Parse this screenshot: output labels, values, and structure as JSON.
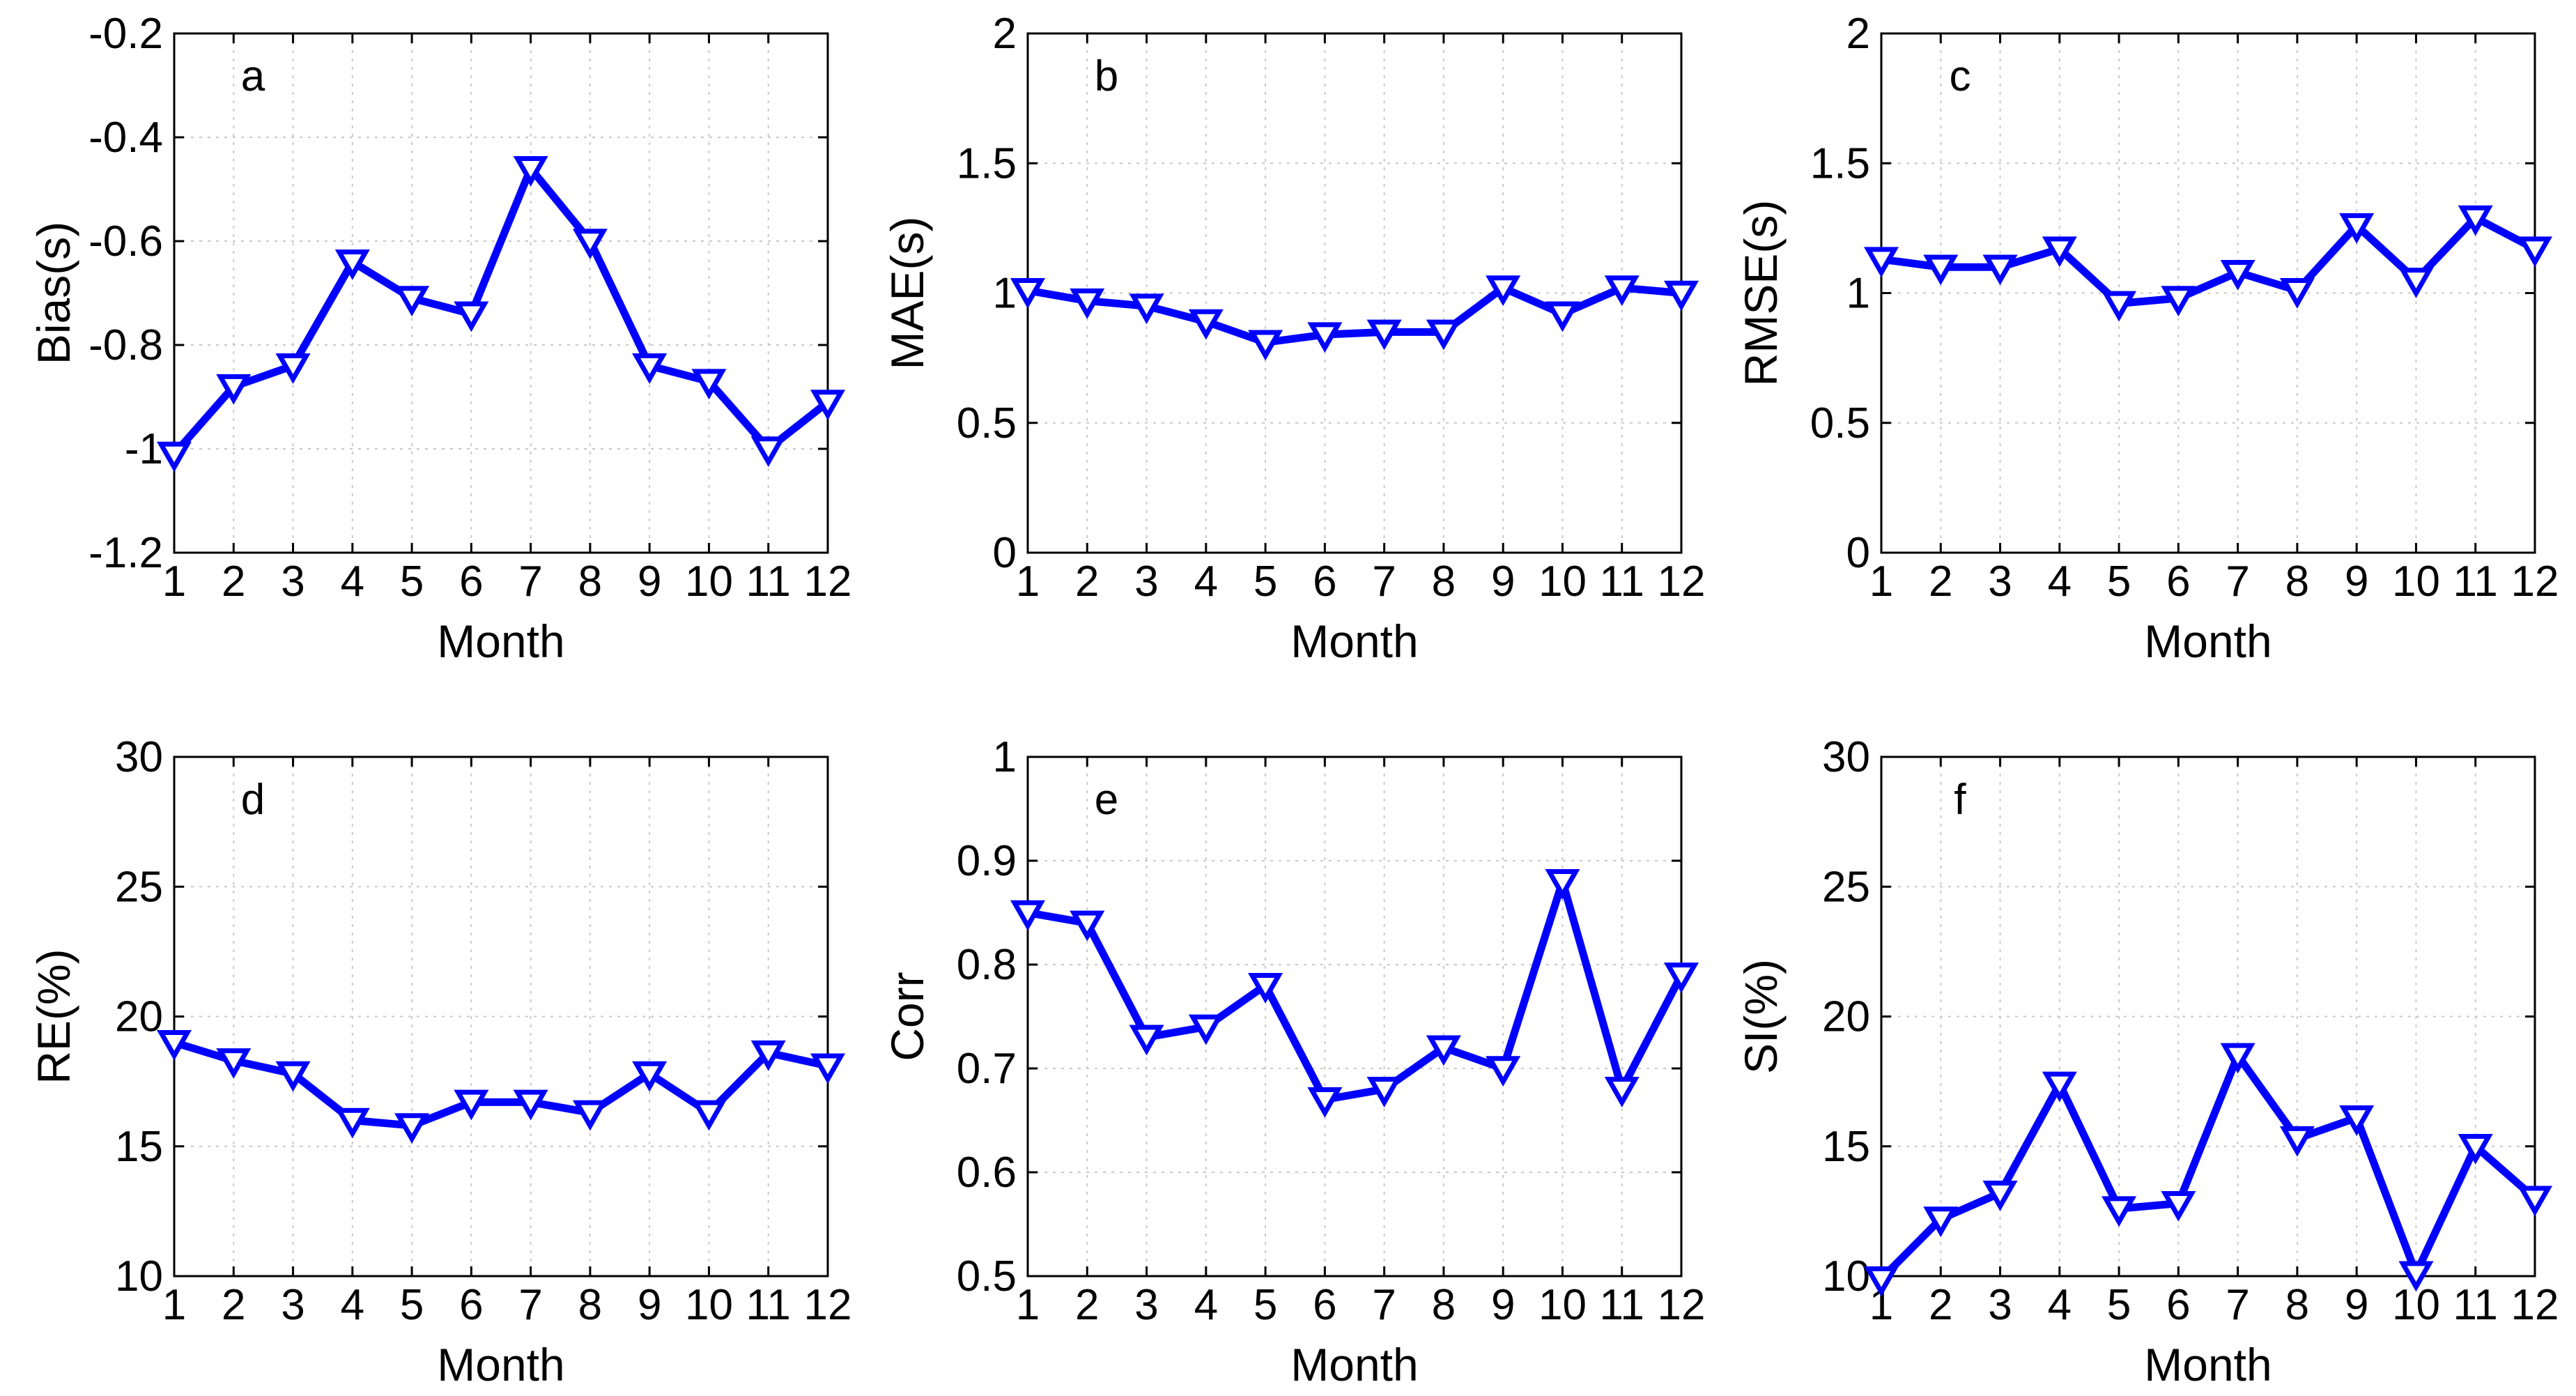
{
  "colors": {
    "series": "#0000ff",
    "axis": "#000000",
    "grid": "#c8c8c8"
  },
  "marker_icon": "triangle-down-icon",
  "chart_data": [
    {
      "type": "line",
      "panel": "a",
      "title": "",
      "xlabel": "Month",
      "ylabel": "Bias(s)",
      "x": [
        1,
        2,
        3,
        4,
        5,
        6,
        7,
        8,
        9,
        10,
        11,
        12
      ],
      "xticks": [
        "1",
        "2",
        "3",
        "4",
        "5",
        "6",
        "7",
        "8",
        "9",
        "10",
        "11",
        "12"
      ],
      "xlim": [
        1,
        12
      ],
      "ylim": [
        -1.2,
        -0.2
      ],
      "yticks": [
        -1.2,
        -1,
        -0.8,
        -0.6,
        -0.4,
        -0.2
      ],
      "ytick_labels": [
        "-1.2",
        "-1",
        "-0.8",
        "-0.6",
        "-0.4",
        "-0.2"
      ],
      "grid": true,
      "series": [
        {
          "name": "Bias",
          "values": [
            -1.01,
            -0.88,
            -0.84,
            -0.64,
            -0.71,
            -0.74,
            -0.46,
            -0.6,
            -0.84,
            -0.87,
            -1.0,
            -0.91
          ]
        }
      ]
    },
    {
      "type": "line",
      "panel": "b",
      "title": "",
      "xlabel": "Month",
      "ylabel": "MAE(s)",
      "x": [
        1,
        2,
        3,
        4,
        5,
        6,
        7,
        8,
        9,
        10,
        11,
        12
      ],
      "xticks": [
        "1",
        "2",
        "3",
        "4",
        "5",
        "6",
        "7",
        "8",
        "9",
        "10",
        "11",
        "12"
      ],
      "xlim": [
        1,
        12
      ],
      "ylim": [
        0,
        2
      ],
      "yticks": [
        0,
        0.5,
        1,
        1.5,
        2
      ],
      "ytick_labels": [
        "0",
        "0.5",
        "1",
        "1.5",
        "2"
      ],
      "grid": true,
      "series": [
        {
          "name": "MAE",
          "values": [
            1.01,
            0.97,
            0.95,
            0.89,
            0.81,
            0.84,
            0.85,
            0.85,
            1.02,
            0.92,
            1.02,
            1.0
          ]
        }
      ]
    },
    {
      "type": "line",
      "panel": "c",
      "title": "",
      "xlabel": "Month",
      "ylabel": "RMSE(s)",
      "x": [
        1,
        2,
        3,
        4,
        5,
        6,
        7,
        8,
        9,
        10,
        11,
        12
      ],
      "xticks": [
        "1",
        "2",
        "3",
        "4",
        "5",
        "6",
        "7",
        "8",
        "9",
        "10",
        "11",
        "12"
      ],
      "xlim": [
        1,
        12
      ],
      "ylim": [
        0,
        2
      ],
      "yticks": [
        0,
        0.5,
        1,
        1.5,
        2
      ],
      "ytick_labels": [
        "0",
        "0.5",
        "1",
        "1.5",
        "2"
      ],
      "grid": true,
      "series": [
        {
          "name": "RMSE",
          "values": [
            1.13,
            1.1,
            1.1,
            1.17,
            0.96,
            0.98,
            1.08,
            1.01,
            1.26,
            1.05,
            1.29,
            1.17
          ]
        }
      ]
    },
    {
      "type": "line",
      "panel": "d",
      "title": "",
      "xlabel": "Month",
      "ylabel": "RE(%)",
      "x": [
        1,
        2,
        3,
        4,
        5,
        6,
        7,
        8,
        9,
        10,
        11,
        12
      ],
      "xticks": [
        "1",
        "2",
        "3",
        "4",
        "5",
        "6",
        "7",
        "8",
        "9",
        "10",
        "11",
        "12"
      ],
      "xlim": [
        1,
        12
      ],
      "ylim": [
        10,
        30
      ],
      "yticks": [
        10,
        15,
        20,
        25,
        30
      ],
      "ytick_labels": [
        "10",
        "15",
        "20",
        "25",
        "30"
      ],
      "grid": true,
      "series": [
        {
          "name": "RE",
          "values": [
            19.0,
            18.3,
            17.8,
            16.0,
            15.8,
            16.7,
            16.7,
            16.3,
            17.8,
            16.3,
            18.6,
            18.1
          ]
        }
      ]
    },
    {
      "type": "line",
      "panel": "e",
      "title": "",
      "xlabel": "Month",
      "ylabel": "Corr",
      "x": [
        1,
        2,
        3,
        4,
        5,
        6,
        7,
        8,
        9,
        10,
        11,
        12
      ],
      "xticks": [
        "1",
        "2",
        "3",
        "4",
        "5",
        "6",
        "7",
        "8",
        "9",
        "10",
        "11",
        "12"
      ],
      "xlim": [
        1,
        12
      ],
      "ylim": [
        0.5,
        1
      ],
      "yticks": [
        0.5,
        0.6,
        0.7,
        0.8,
        0.9,
        1
      ],
      "ytick_labels": [
        "0.5",
        "0.6",
        "0.7",
        "0.8",
        "0.9",
        "1"
      ],
      "grid": true,
      "series": [
        {
          "name": "Corr",
          "values": [
            0.85,
            0.84,
            0.73,
            0.74,
            0.78,
            0.67,
            0.68,
            0.72,
            0.7,
            0.88,
            0.68,
            0.79
          ]
        }
      ]
    },
    {
      "type": "line",
      "panel": "f",
      "title": "",
      "xlabel": "Month",
      "ylabel": "SI(%)",
      "x": [
        1,
        2,
        3,
        4,
        5,
        6,
        7,
        8,
        9,
        10,
        11,
        12
      ],
      "xticks": [
        "1",
        "2",
        "3",
        "4",
        "5",
        "6",
        "7",
        "8",
        "9",
        "10",
        "11",
        "12"
      ],
      "xlim": [
        1,
        12
      ],
      "ylim": [
        10,
        30
      ],
      "yticks": [
        10,
        15,
        20,
        25,
        30
      ],
      "ytick_labels": [
        "10",
        "15",
        "20",
        "25",
        "30"
      ],
      "grid": true,
      "series": [
        {
          "name": "SI",
          "values": [
            9.9,
            12.2,
            13.2,
            17.4,
            12.6,
            12.8,
            18.5,
            15.3,
            16.1,
            10.1,
            15.0,
            13.0
          ]
        }
      ]
    }
  ]
}
